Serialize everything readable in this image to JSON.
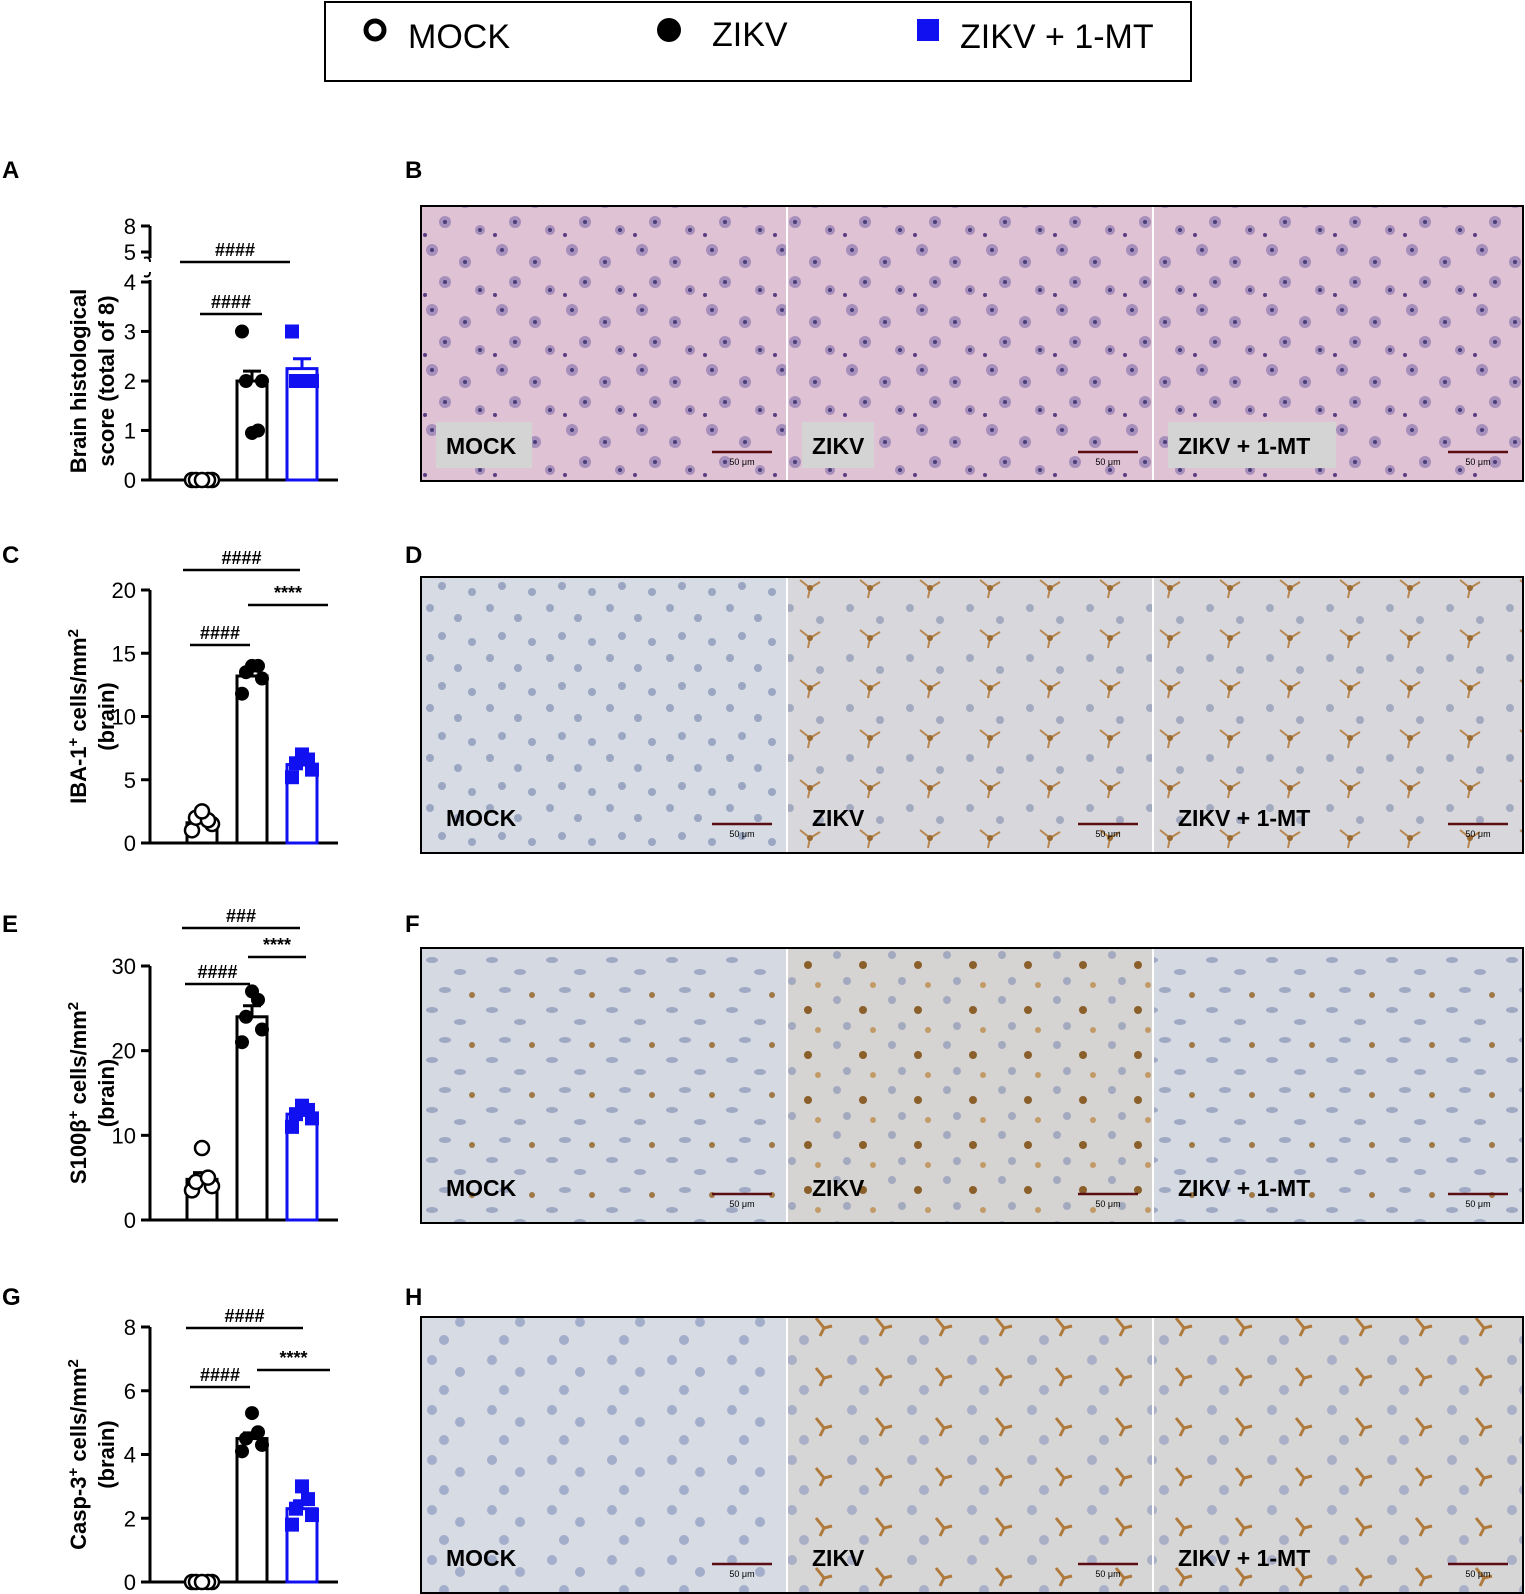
{
  "legend": {
    "items": [
      {
        "label": "MOCK",
        "marker": "open-circle",
        "color": "#000000"
      },
      {
        "label": "ZIKV",
        "marker": "filled-circle",
        "color": "#000000"
      },
      {
        "label": "ZIKV + 1-MT",
        "marker": "filled-square",
        "color": "#1010f0"
      }
    ]
  },
  "colors": {
    "mock": "#000000",
    "zikv": "#000000",
    "zikv_mt": "#1010f0"
  },
  "panel_letters": [
    "A",
    "B",
    "C",
    "D",
    "E",
    "F",
    "G",
    "H"
  ],
  "chart_data": [
    {
      "panel": "A",
      "type": "bar",
      "ylabel_line1": "Brain histological",
      "ylabel_line2": "score (total of 8)",
      "categories": [
        "MOCK",
        "ZIKV",
        "ZIKV + 1-MT"
      ],
      "means": [
        0,
        2.0,
        2.25
      ],
      "sem": [
        0,
        0.2,
        0.2
      ],
      "points": [
        [
          0,
          0,
          0,
          0,
          0
        ],
        [
          3,
          2,
          2,
          1,
          0.95
        ],
        [
          3,
          2,
          2,
          2,
          2
        ]
      ],
      "ylim": [
        0,
        8
      ],
      "axis_break": [
        4,
        5
      ],
      "yticks": [
        0,
        1,
        2,
        3,
        4
      ],
      "yticks_upper": [
        5,
        8
      ],
      "significance": [
        {
          "label": "####",
          "from": 0,
          "to": 2
        },
        {
          "label": "####",
          "from": 0,
          "to": 1
        }
      ]
    },
    {
      "panel": "C",
      "type": "bar",
      "ylabel_line1": "IBA-1",
      "ylabel_sup": "+",
      "ylabel_line1b": " cells/mm",
      "ylabel_sup2": "2",
      "ylabel_line2": "(brain)",
      "categories": [
        "MOCK",
        "ZIKV",
        "ZIKV + 1-MT"
      ],
      "means": [
        1.6,
        13.2,
        6.2
      ],
      "sem": [
        0.4,
        0.5,
        0.4
      ],
      "points": [
        [
          1,
          1.5,
          2,
          1.8,
          2.5
        ],
        [
          11.8,
          13,
          13.5,
          14,
          14
        ],
        [
          5.2,
          5.8,
          6.3,
          6.6,
          7
        ]
      ],
      "ylim": [
        0,
        20
      ],
      "yticks": [
        0,
        5,
        10,
        15,
        20
      ],
      "significance": [
        {
          "label": "####",
          "from": 0,
          "to": 2
        },
        {
          "label": "####",
          "from": 0,
          "to": 1
        },
        {
          "label": "****",
          "from": 1,
          "to": 2
        }
      ]
    },
    {
      "panel": "E",
      "type": "bar",
      "ylabel_line1": "S100β",
      "ylabel_sup": "+",
      "ylabel_line1b": " cells/mm",
      "ylabel_sup2": "2",
      "ylabel_line2": "(brain)",
      "categories": [
        "MOCK",
        "ZIKV",
        "ZIKV + 1-MT"
      ],
      "means": [
        4.8,
        24.0,
        12.5
      ],
      "sem": [
        0.8,
        1.3,
        0.5
      ],
      "points": [
        [
          3.5,
          4,
          4.5,
          5,
          8.5
        ],
        [
          21,
          22.5,
          24,
          26,
          27
        ],
        [
          11,
          12,
          12.5,
          13,
          13.5
        ]
      ],
      "ylim": [
        0,
        30
      ],
      "yticks": [
        0,
        10,
        20,
        30
      ],
      "significance": [
        {
          "label": "###",
          "from": 0,
          "to": 2
        },
        {
          "label": "####",
          "from": 0,
          "to": 1
        },
        {
          "label": "****",
          "from": 1,
          "to": 2
        }
      ]
    },
    {
      "panel": "G",
      "type": "bar",
      "ylabel_line1": "Casp-3",
      "ylabel_sup": "+",
      "ylabel_line1b": " cells/mm",
      "ylabel_sup2": "2",
      "ylabel_line2": "(brain)",
      "categories": [
        "MOCK",
        "ZIKV",
        "ZIKV + 1-MT"
      ],
      "means": [
        0,
        4.5,
        2.3
      ],
      "sem": [
        0,
        0.18,
        0.25
      ],
      "points": [
        [
          0,
          0,
          0,
          0,
          0
        ],
        [
          4.1,
          4.3,
          4.5,
          4.7,
          5.3
        ],
        [
          1.8,
          2.1,
          2.3,
          2.6,
          3.0
        ]
      ],
      "ylim": [
        0,
        8
      ],
      "yticks": [
        0,
        2,
        4,
        6,
        8
      ],
      "significance": [
        {
          "label": "####",
          "from": 0,
          "to": 2
        },
        {
          "label": "####",
          "from": 0,
          "to": 1
        },
        {
          "label": "****",
          "from": 1,
          "to": 2
        }
      ]
    }
  ],
  "image_panels": [
    {
      "panel": "B",
      "stain": "he",
      "labels": [
        "MOCK",
        "ZIKV",
        "ZIKV + 1-MT"
      ],
      "scale": "50 μm"
    },
    {
      "panel": "D",
      "stain": "ihc-iba1",
      "labels": [
        "MOCK",
        "ZIKV",
        "ZIKV + 1-MT"
      ],
      "scale": "50 μm"
    },
    {
      "panel": "F",
      "stain": "ihc-s100",
      "labels": [
        "MOCK",
        "ZIKV",
        "ZIKV + 1-MT"
      ],
      "scale": "50 μm"
    },
    {
      "panel": "H",
      "stain": "ihc-casp3",
      "labels": [
        "MOCK",
        "ZIKV",
        "ZIKV + 1-MT"
      ],
      "scale": "50 μm"
    }
  ]
}
